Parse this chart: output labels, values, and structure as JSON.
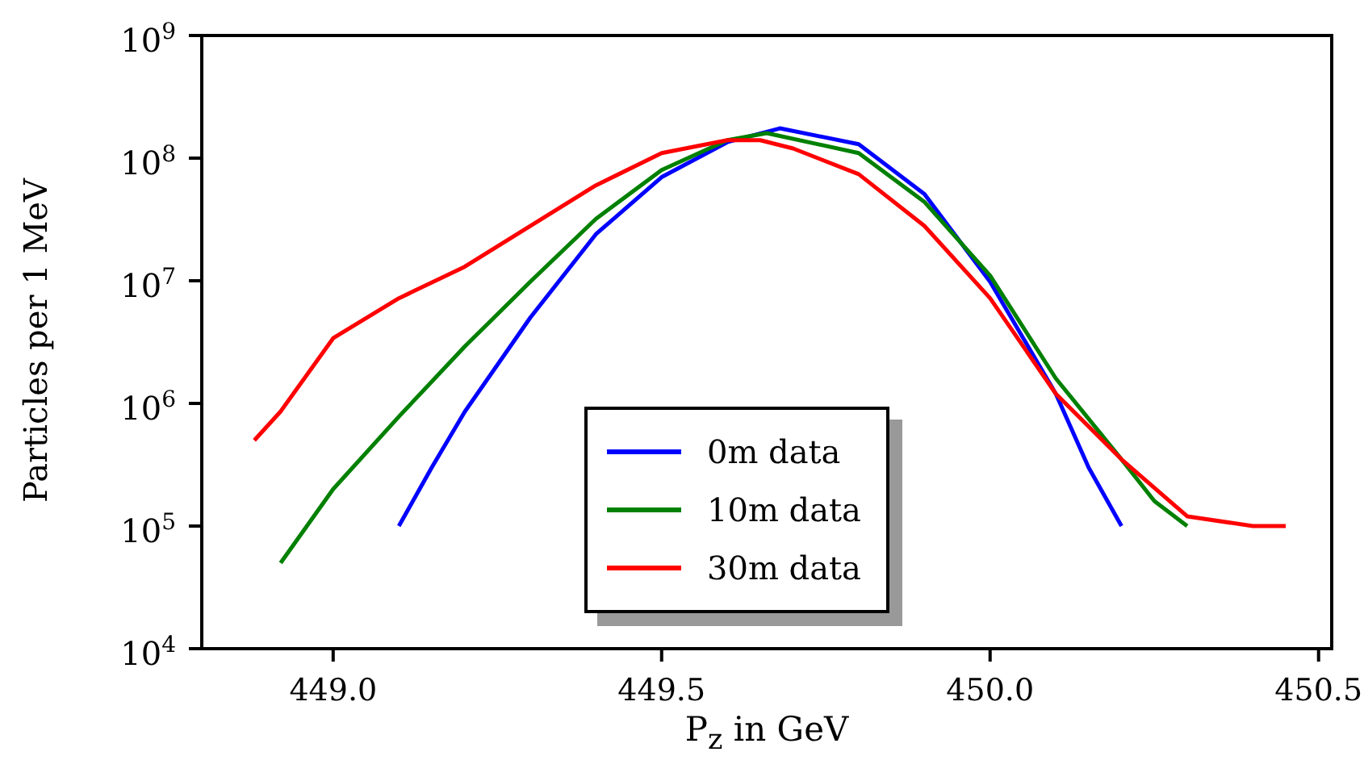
{
  "chart_data": {
    "type": "line",
    "xlabel": "P$_{z}$ in GeV",
    "ylabel": "Particles per 1 MeV",
    "log": "y",
    "grid": false,
    "legend": "bottom",
    "marker": "none",
    "line_style": "solid",
    "xlim": [
      448.8,
      450.52
    ],
    "xticks": [
      {
        "value": 449,
        "label": "449.0"
      },
      {
        "value": 449.5,
        "label": "449.5"
      },
      {
        "value": 450,
        "label": "450.0"
      },
      {
        "value": 450.5,
        "label": "450.5"
      }
    ],
    "ylim": [
      10000,
      1000000000
    ],
    "yticks": [
      {
        "value": 10000,
        "label": "10$^{4}$"
      },
      {
        "value": 100000,
        "label": "10$^{5}$"
      },
      {
        "value": 1000000,
        "label": "10$^{6}$"
      },
      {
        "value": 10000000,
        "label": "10$^{7}$"
      },
      {
        "value": 100000000,
        "label": "10$^{8}$"
      },
      {
        "value": 1000000000,
        "label": "10$^{9}$"
      }
    ],
    "series": [
      {
        "name": "0m data",
        "color": "#0000ff",
        "x": [
          449.1,
          449.15,
          449.2,
          449.3,
          449.4,
          449.5,
          449.6,
          449.68,
          449.8,
          449.9,
          450.0,
          450.1,
          450.15,
          450.2
        ],
        "values": [
          100000,
          300000,
          850000,
          5000000,
          24000000,
          70000000,
          135000000,
          175000000,
          130000000,
          51000000,
          9800000,
          1200000,
          300000,
          100000
        ]
      },
      {
        "name": "10m data",
        "color": "#008000",
        "x": [
          448.92,
          449.0,
          449.1,
          449.2,
          449.3,
          449.4,
          449.5,
          449.6,
          449.66,
          449.8,
          449.9,
          450.0,
          450.1,
          450.2,
          450.25,
          450.3
        ],
        "values": [
          50000,
          200000,
          780000,
          2900000,
          9800000,
          32000000,
          80000000,
          140000000,
          160000000,
          110000000,
          44000000,
          11000000,
          1600000,
          350000,
          160000,
          100000
        ]
      },
      {
        "name": "30m data",
        "color": "#ff0000",
        "x": [
          448.88,
          448.92,
          449.0,
          449.1,
          449.2,
          449.3,
          449.4,
          449.5,
          449.6,
          449.65,
          449.7,
          449.8,
          449.9,
          450.0,
          450.1,
          450.2,
          450.3,
          450.4,
          450.45
        ],
        "values": [
          500000,
          860000,
          3400000,
          7200000,
          13000000,
          28000000,
          60000000,
          110000000,
          140000000,
          140000000,
          120000000,
          74000000,
          28000000,
          7200000,
          1200000,
          350000,
          120000,
          100000,
          100000
        ]
      }
    ]
  }
}
